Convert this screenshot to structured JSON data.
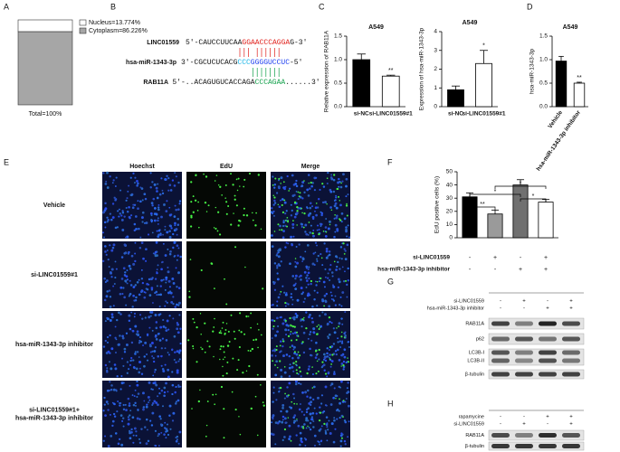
{
  "panel_labels": [
    "A",
    "B",
    "C",
    "D",
    "E",
    "F",
    "G",
    "H"
  ],
  "chart_data": [
    {
      "type": "stacked_bar",
      "categories": [
        "Total=100%"
      ],
      "ylim": [
        0,
        100
      ],
      "series": [
        {
          "name": "Nucleus=13.774%",
          "color": "#ffffff",
          "values": [
            13.774
          ]
        },
        {
          "name": "Cytoplasm=86.226%",
          "color": "#a6a6a6",
          "values": [
            86.226
          ]
        }
      ]
    },
    {
      "type": "bar",
      "title": "A549",
      "y_label": "Relative expression of RAB11A",
      "categories": [
        "si-NC",
        "si-LINC01559#1"
      ],
      "values": [
        1.0,
        0.65
      ],
      "errors": [
        0.12,
        0.02
      ],
      "colors": [
        "#000000",
        "#ffffff"
      ],
      "ylim": [
        0,
        1.5
      ],
      "yticks": [
        {
          "value": 0,
          "label": "0.0"
        },
        0.5,
        {
          "value": 1,
          "label": "1.0"
        },
        1.5
      ],
      "significance": "**"
    },
    {
      "type": "bar",
      "title": "A549",
      "y_label": "Expression of hsa-miR-1343-3p",
      "categories": [
        "si-NC",
        "si-LINC01559#1"
      ],
      "values": [
        0.9,
        2.3
      ],
      "errors": [
        0.2,
        0.7
      ],
      "colors": [
        "#000000",
        "#ffffff"
      ],
      "ylim": [
        0,
        4
      ],
      "yticks": [
        0,
        1,
        2,
        3,
        4
      ],
      "significance": "*"
    },
    {
      "type": "bar",
      "title": "A549",
      "y_label": "hsa-miR-1343-3p",
      "categories": [
        "Vehicle",
        "hsa-miR-1343-3p inhibitor"
      ],
      "values": [
        0.97,
        0.5
      ],
      "errors": [
        0.1,
        0.02
      ],
      "colors": [
        "#000000",
        "#ffffff"
      ],
      "ylim": [
        0,
        1.5
      ],
      "yticks": [
        {
          "value": 0,
          "label": "0.0"
        },
        0.5,
        {
          "value": 1,
          "label": "1.0"
        },
        1.5
      ],
      "significance": "**"
    },
    {
      "type": "bar",
      "y_label": "EdU positive cells (%)",
      "categories": [
        null,
        null,
        null,
        null
      ],
      "values": [
        31,
        18,
        40,
        27
      ],
      "errors": [
        3,
        3,
        4,
        2
      ],
      "colors": [
        "#000000",
        "#9a9a9a",
        "#707070",
        "#ffffff"
      ],
      "ylim": [
        0,
        50
      ],
      "yticks": [
        0,
        10,
        20,
        30,
        40,
        50
      ],
      "significance": [
        "**",
        "*",
        "*",
        "*"
      ],
      "conditions": [
        {
          "label": "si-LINC01559",
          "signs": [
            "-",
            "+",
            "-",
            "+"
          ]
        },
        {
          "label": "hsa-miR-1343-3p inhibitor",
          "signs": [
            "-",
            "-",
            "+",
            "+"
          ]
        }
      ]
    }
  ],
  "sequences": [
    {
      "name": "LINC01559",
      "parts": [
        "5'-CAUCCUUCAA",
        "GGAACCCAGGA",
        "G-3'"
      ]
    },
    {
      "name": "hsa-miR-1343-3p",
      "parts": [
        "3'-CGCUCUCACG",
        "CCC",
        "GGGGUCCUC",
        "-5'"
      ]
    },
    {
      "name": "RAB11A",
      "parts": [
        "5'-..ACAGUGUCACCAGA",
        "CCCAGAA",
        "......3'"
      ]
    }
  ],
  "microscopy": {
    "columns": [
      "Hoechst",
      "EdU",
      "Merge"
    ],
    "rows": [
      [
        "Vehicle"
      ],
      [
        "si-LINC01559#1"
      ],
      [
        "hsa-miR-1343-3p inhibitor"
      ],
      [
        "si-LINC01559#1+",
        "hsa-miR-1343-3p inhibitor"
      ]
    ]
  },
  "blots": [
    {
      "conditions": [
        {
          "label": "si-LINC01559",
          "signs": [
            "-",
            "+",
            "-",
            "+"
          ]
        },
        {
          "label": "hsa-miR-1343-3p inhibitor",
          "signs": [
            "-",
            "-",
            "+",
            "+"
          ]
        }
      ],
      "bands": [
        "RAB11A",
        "p62",
        "LC3B-I",
        "LC3B-II",
        "β-tubulin"
      ]
    },
    {
      "conditions": [
        {
          "label": "rapamycine",
          "signs": [
            "-",
            "-",
            "+",
            "+"
          ]
        },
        {
          "label": "si-LINC01559",
          "signs": [
            "-",
            "+",
            "-",
            "+"
          ]
        }
      ],
      "bands": [
        "RAB11A",
        "β-tubulin"
      ]
    }
  ]
}
